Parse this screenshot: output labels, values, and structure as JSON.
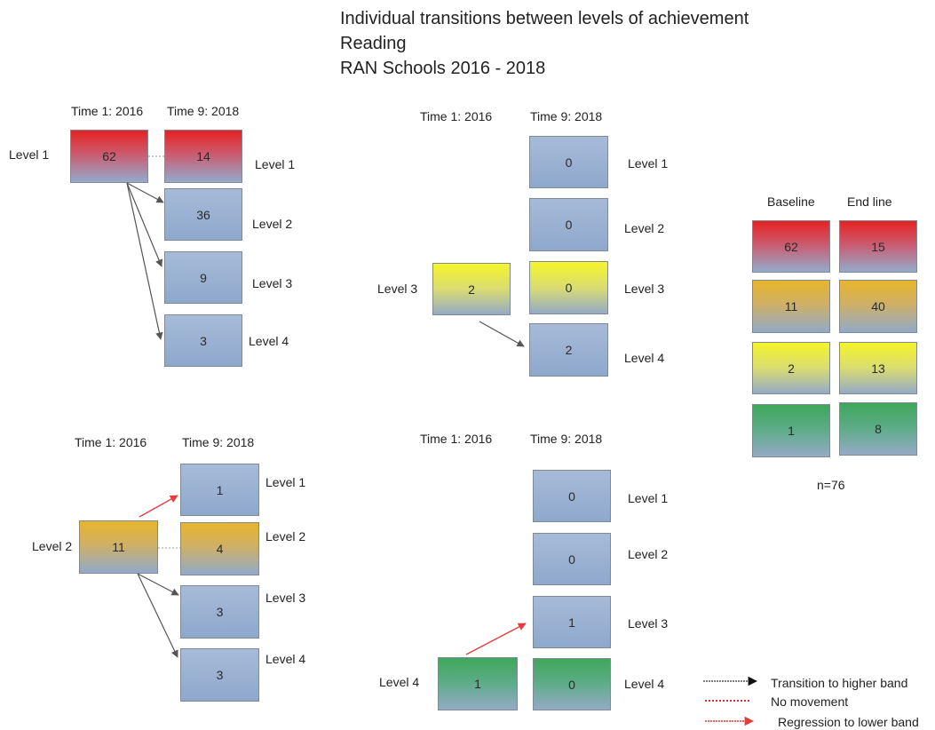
{
  "title": {
    "line1": "Individual transitions between levels of achievement",
    "line2": "Reading",
    "line3": "RAN Schools 2016 - 2018"
  },
  "headers": {
    "time1": "Time 1: 2016",
    "time9": "Time 9: 2018"
  },
  "levels": {
    "l1": "Level 1",
    "l2": "Level 2",
    "l3": "Level 3",
    "l4": "Level 4"
  },
  "panels": {
    "level1": {
      "start": "62",
      "end": [
        "14",
        "36",
        "9",
        "3"
      ]
    },
    "level2": {
      "start": "11",
      "end": [
        "1",
        "4",
        "3",
        "3"
      ]
    },
    "level3": {
      "start": "2",
      "end": [
        "0",
        "0",
        "0",
        "2"
      ]
    },
    "level4": {
      "start": "1",
      "end": [
        "0",
        "0",
        "1",
        "0"
      ]
    }
  },
  "summary": {
    "baseline_label": "Baseline",
    "endline_label": "End line",
    "baseline": [
      "62",
      "11",
      "2",
      "1"
    ],
    "endline": [
      "15",
      "40",
      "13",
      "8"
    ],
    "n": "n=76"
  },
  "legend": {
    "higher": "Transition to higher band",
    "none": "No movement",
    "lower": "Regression to lower band"
  },
  "colors": {
    "level1": "#e52222",
    "level2": "#e8b52c",
    "level3": "#f5f52a",
    "level4": "#3ea75a",
    "base": "#9bb1d2",
    "arrow_higher": "#555555",
    "arrow_lower": "#e63c3c"
  }
}
